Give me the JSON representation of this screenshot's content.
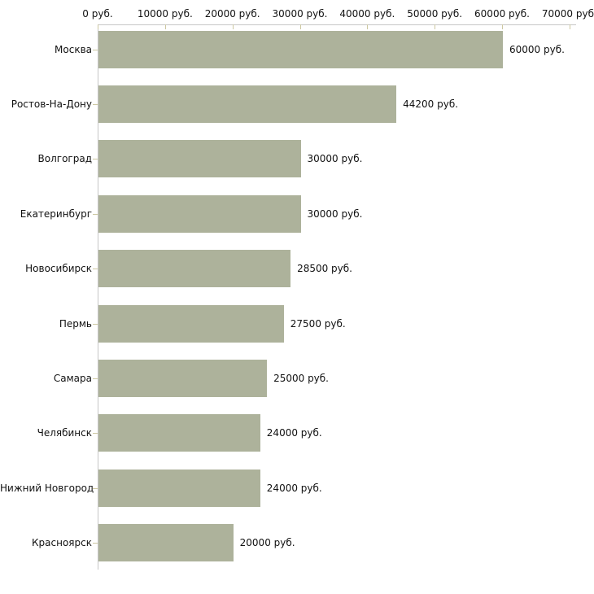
{
  "chart_data": {
    "type": "bar",
    "orientation": "horizontal",
    "title": "",
    "xlabel": "",
    "ylabel": "",
    "unit": "руб.",
    "xlim": [
      0,
      70000
    ],
    "grid": false,
    "legend": null,
    "categories": [
      "Москва",
      "Ростов-На-Дону",
      "Волгоград",
      "Екатеринбург",
      "Новосибирск",
      "Пермь",
      "Самара",
      "Челябинск",
      "Нижний Новгород",
      "Красноярск"
    ],
    "values": [
      60000,
      44200,
      30000,
      30000,
      28500,
      27500,
      25000,
      24000,
      24000,
      20000
    ],
    "value_labels": [
      "60000 руб.",
      "44200 руб.",
      "30000 руб.",
      "30000 руб.",
      "28500 руб.",
      "27500 руб.",
      "25000 руб.",
      "24000 руб.",
      "24000 руб.",
      "20000 руб."
    ],
    "x_axis": {
      "tick_values": [
        0,
        10000,
        20000,
        30000,
        40000,
        50000,
        60000,
        70000
      ],
      "tick_labels": [
        "0 руб.",
        "10000 руб.",
        "20000 руб.",
        "30000 руб.",
        "40000 руб.",
        "50000 руб.",
        "60000 руб.",
        "70000 руб."
      ]
    },
    "colors": {
      "bar_fill": "#adb29b",
      "axis_line": "#c6c6c6",
      "tick_mark": "#cdc8a2",
      "text": "#111111",
      "background": "#ffffff"
    }
  }
}
